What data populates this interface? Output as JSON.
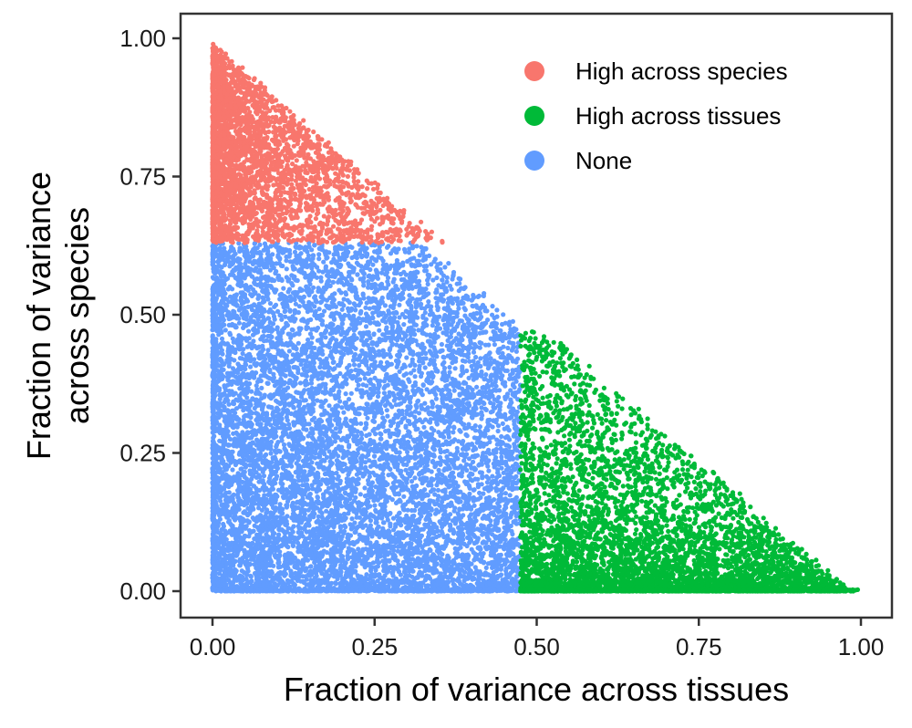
{
  "chart_data": {
    "type": "scatter",
    "title": "",
    "xlabel": "Fraction of variance across tissues",
    "ylabel_lines": [
      "Fraction of variance",
      "across species"
    ],
    "xlim": [
      0,
      1
    ],
    "ylim": [
      0,
      1
    ],
    "x_ticks": [
      0,
      0.25,
      0.5,
      0.75,
      1
    ],
    "x_tick_labels": [
      "0.00",
      "0.25",
      "0.50",
      "0.75",
      "1.00"
    ],
    "y_ticks": [
      0,
      0.25,
      0.5,
      0.75,
      1
    ],
    "y_tick_labels": [
      "0.00",
      "0.25",
      "0.50",
      "0.75",
      "1.00"
    ],
    "grid": false,
    "legend_position": "top-right",
    "constraint": "x + y <= 1",
    "series": [
      {
        "name": "High across species",
        "color": "#F8766D",
        "region": {
          "y_min": 0.63,
          "y_max": 0.99,
          "x_min": 0,
          "x_max": 0.37
        },
        "approx_points": 3000
      },
      {
        "name": "High across tissues",
        "color": "#00BA38",
        "region": {
          "x_min": 0.475,
          "x_max": 1.0,
          "y_min": 0,
          "y_max": 0.47
        },
        "approx_points": 5000
      },
      {
        "name": "None",
        "color": "#619CFF",
        "region": {
          "x_min": 0,
          "x_max": 0.475,
          "y_min": 0,
          "y_max": 0.63
        },
        "approx_points": 9000
      }
    ]
  }
}
